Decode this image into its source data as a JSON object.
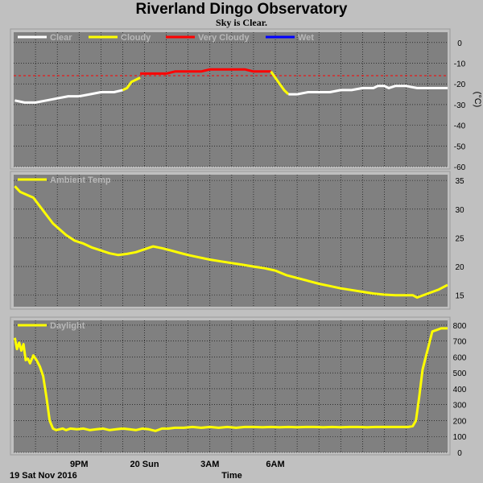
{
  "header": {
    "title": "Riverland Dingo Observatory",
    "subtitle": "Sky is Clear."
  },
  "footer": {
    "date_label": "19 Sat Nov 2016",
    "time_label": "Time"
  },
  "x_axis": {
    "range_hours": [
      18.0,
      29.8
    ],
    "ticks": [
      {
        "hour": 21,
        "label": "9PM"
      },
      {
        "hour": 24,
        "label": "20 Sun"
      },
      {
        "hour": 27,
        "label": "3AM"
      },
      {
        "hour": 30,
        "label": "6AM"
      }
    ]
  },
  "colors": {
    "plot_bg": "#808080",
    "clear": "#ffffff",
    "cloudy": "#ffff00",
    "very_cloudy": "#ff0000",
    "wet": "#0000ff",
    "threshold": "#ff0000"
  },
  "chart_data": [
    {
      "type": "line",
      "name": "sky-temperature",
      "ylabel": "(°C)",
      "ylim": [
        -60,
        5
      ],
      "yticks": [
        0,
        -10,
        -20,
        -30,
        -40,
        -50,
        -60
      ],
      "threshold": -16,
      "legend": [
        {
          "label": "Clear",
          "color": "#ffffff"
        },
        {
          "label": "Cloudy",
          "color": "#ffff00"
        },
        {
          "label": "Very Cloudy",
          "color": "#ff0000"
        },
        {
          "label": "Wet",
          "color": "#0000ff"
        }
      ],
      "segments": [
        {
          "condition": "clear",
          "color": "#ffffff",
          "x": [
            18.05,
            18.5,
            19.0,
            19.5,
            20.0,
            20.5,
            21.0,
            21.5,
            22.0,
            22.6,
            23.0
          ],
          "y": [
            -28,
            -29,
            -29,
            -28,
            -27,
            -26,
            -26,
            -25,
            -24,
            -24,
            -23
          ]
        },
        {
          "condition": "cloudy",
          "color": "#ffff00",
          "x": [
            23.0,
            23.2,
            23.4,
            23.6,
            23.8
          ],
          "y": [
            -23,
            -22,
            -19,
            -18,
            -17
          ]
        },
        {
          "condition": "very_cloudy",
          "color": "#ff0000",
          "x": [
            23.8,
            24.2,
            24.6,
            25.0,
            25.4,
            25.8,
            26.2,
            26.6,
            27.0,
            27.4,
            27.8,
            28.2,
            28.6,
            29.0,
            29.4,
            29.8
          ],
          "y": [
            -15,
            -15,
            -15,
            -15,
            -14,
            -14,
            -14,
            -14,
            -13,
            -13,
            -13,
            -13,
            -13,
            -14,
            -14,
            -14
          ]
        },
        {
          "condition": "cloudy",
          "color": "#ffff00",
          "x": [
            29.8,
            30.0,
            30.2,
            30.4,
            30.6
          ],
          "y": [
            -14,
            -17,
            -20,
            -23,
            -25
          ]
        },
        {
          "condition": "clear",
          "color": "#ffffff",
          "x": [
            30.6,
            31.0,
            31.5,
            32.0,
            32.5,
            33.0,
            33.5,
            34.0,
            34.5,
            34.7,
            35.0,
            35.2,
            35.5,
            36.0,
            36.5,
            37.0,
            37.5,
            37.9
          ],
          "y": [
            -25,
            -25,
            -24,
            -24,
            -24,
            -23,
            -23,
            -22,
            -22,
            -21,
            -21,
            -22,
            -21,
            -21,
            -22,
            -22,
            -22,
            -22
          ]
        }
      ]
    },
    {
      "type": "line",
      "name": "ambient-temperature",
      "ylabel": "",
      "ylim": [
        13,
        36
      ],
      "yticks": [
        35,
        30,
        25,
        20,
        15
      ],
      "legend": [
        {
          "label": "Ambient Temp",
          "color": "#ffff00"
        }
      ],
      "series": [
        {
          "name": "Ambient Temp",
          "color": "#ffff00",
          "x": [
            18.05,
            18.3,
            18.6,
            18.9,
            19.2,
            19.5,
            19.8,
            20.1,
            20.4,
            20.8,
            21.2,
            21.6,
            22.0,
            22.4,
            22.8,
            23.2,
            23.6,
            24.0,
            24.4,
            24.8,
            25.2,
            25.6,
            26.0,
            26.5,
            27.0,
            27.5,
            28.0,
            28.5,
            29.0,
            29.5,
            30.0,
            30.5,
            31.0,
            31.5,
            32.0,
            32.5,
            33.0,
            33.5,
            34.0,
            34.5,
            35.0,
            35.5,
            36.0,
            36.3,
            36.5,
            37.0,
            37.5,
            37.9
          ],
          "y": [
            34,
            33,
            32.5,
            32,
            30.5,
            29,
            27.5,
            26.5,
            25.5,
            24.5,
            24,
            23.3,
            22.8,
            22.3,
            22,
            22.2,
            22.5,
            23,
            23.5,
            23.2,
            22.8,
            22.4,
            22,
            21.6,
            21.2,
            20.9,
            20.6,
            20.3,
            20,
            19.7,
            19.3,
            18.5,
            18,
            17.5,
            17,
            16.6,
            16.2,
            15.9,
            15.6,
            15.3,
            15.1,
            15.0,
            15.0,
            15.0,
            14.6,
            15.3,
            16.0,
            16.8
          ]
        }
      ]
    },
    {
      "type": "line",
      "name": "daylight",
      "ylabel": "",
      "ylim": [
        0,
        830
      ],
      "yticks": [
        800,
        700,
        600,
        500,
        400,
        300,
        200,
        100,
        0
      ],
      "legend": [
        {
          "label": "Daylight",
          "color": "#ffff00"
        }
      ],
      "series": [
        {
          "name": "Daylight",
          "color": "#ffff00",
          "x": [
            18.05,
            18.15,
            18.25,
            18.35,
            18.45,
            18.55,
            18.65,
            18.75,
            18.9,
            19.05,
            19.2,
            19.35,
            19.5,
            19.65,
            19.8,
            19.95,
            20.1,
            20.25,
            20.4,
            20.6,
            20.9,
            21.2,
            21.5,
            21.8,
            22.1,
            22.4,
            22.7,
            23.0,
            23.3,
            23.6,
            23.9,
            24.2,
            24.5,
            24.8,
            25.1,
            25.4,
            25.8,
            26.2,
            26.6,
            27.0,
            27.4,
            27.8,
            28.2,
            28.6,
            29.0,
            29.4,
            29.8,
            30.2,
            30.6,
            31.0,
            31.4,
            31.8,
            32.2,
            32.6,
            33.0,
            33.4,
            33.8,
            34.2,
            34.6,
            35.0,
            35.4,
            35.8,
            36.1,
            36.3,
            36.45,
            36.6,
            36.75,
            36.9,
            37.05,
            37.2,
            37.4,
            37.6,
            37.9
          ],
          "y": [
            720,
            650,
            690,
            640,
            680,
            580,
            590,
            560,
            610,
            580,
            540,
            480,
            350,
            200,
            150,
            140,
            145,
            150,
            140,
            150,
            145,
            150,
            140,
            145,
            150,
            140,
            145,
            150,
            145,
            140,
            150,
            145,
            135,
            150,
            150,
            155,
            155,
            160,
            155,
            160,
            155,
            160,
            155,
            160,
            160,
            158,
            160,
            158,
            160,
            158,
            160,
            160,
            158,
            160,
            158,
            160,
            160,
            158,
            160,
            160,
            160,
            160,
            160,
            165,
            200,
            350,
            520,
            600,
            680,
            760,
            770,
            780,
            780
          ]
        }
      ]
    }
  ]
}
